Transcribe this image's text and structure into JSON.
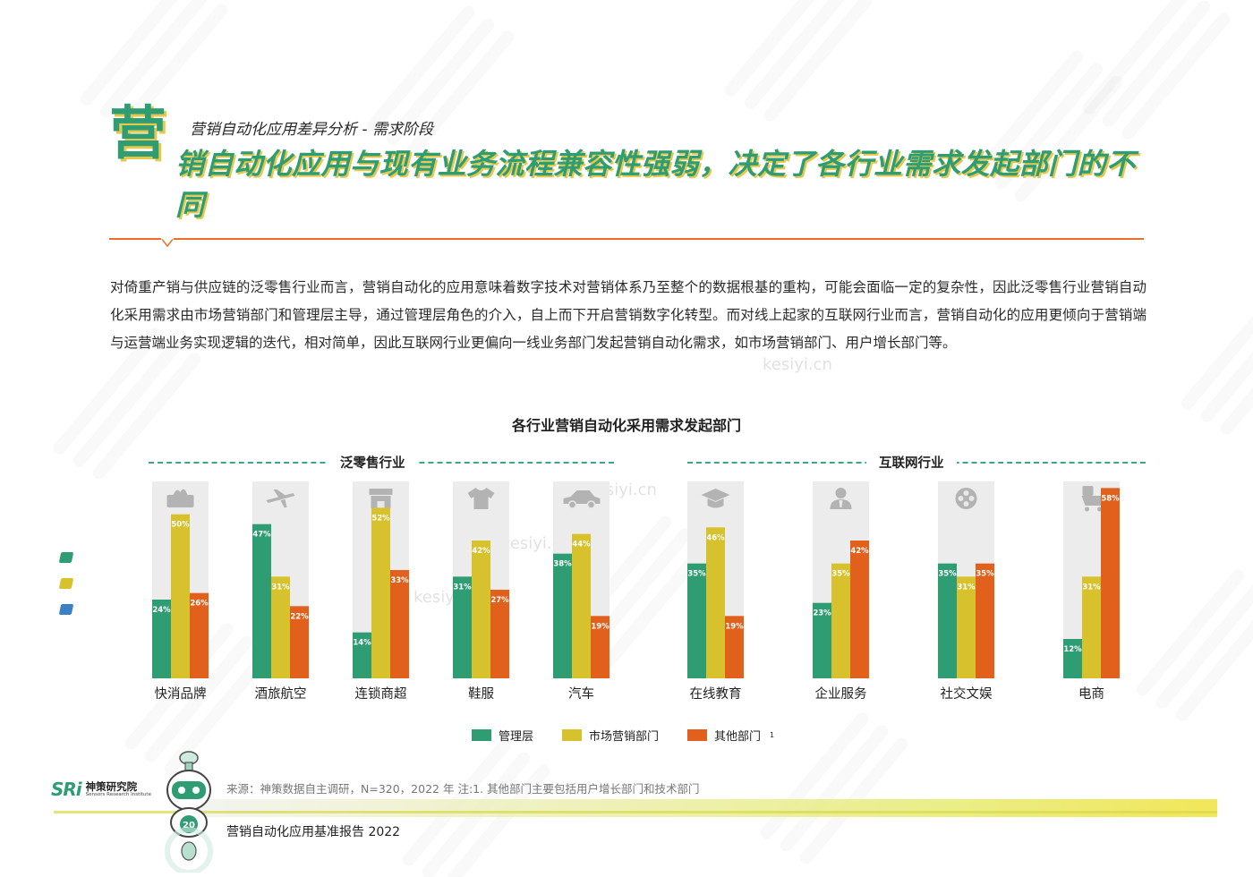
{
  "kicker": "营销自动化应用差异分析 - 需求阶段",
  "headline_first_char": "营",
  "headline_rest": "销自动化应用与现有业务流程兼容性强弱，决定了各行业需求发起部门的不同",
  "body_text": "对倚重产销与供应链的泛零售行业而言，营销自动化的应用意味着数字技术对营销体系乃至整个的数据根基的重构，可能会面临一定的复杂性，因此泛零售行业营销自动化采用需求由市场营销部门和管理层主导，通过管理层角色的介入，自上而下开启营销数字化转型。而对线上起家的互联网行业而言，营销自动化的应用更倾向于营销端与运营端业务实现逻辑的迭代，相对简单，因此互联网行业更偏向一线业务部门发起营销自动化需求，如市场营销部门、用户增长部门等。",
  "watermarks": [
    "kesiyi.cn",
    "kesiyi.cn",
    "kesiyi.cn",
    "kesiyi.cn"
  ],
  "chart_data": {
    "type": "bar",
    "title": "各行业营销自动化采用需求发起部门",
    "groups": [
      "泛零售行业",
      "互联网行业"
    ],
    "categories": [
      "快消品牌",
      "酒旅航空",
      "连锁商超",
      "鞋服",
      "汽车",
      "在线教育",
      "企业服务",
      "社交文娱",
      "电商"
    ],
    "category_group": [
      "泛零售行业",
      "泛零售行业",
      "泛零售行业",
      "泛零售行业",
      "泛零售行业",
      "互联网行业",
      "互联网行业",
      "互联网行业",
      "互联网行业"
    ],
    "icons": [
      "tissue-box-icon",
      "airplane-icon",
      "storefront-icon",
      "tshirt-icon",
      "car-icon",
      "graduation-cap-icon",
      "businessman-icon",
      "film-reel-icon",
      "ecommerce-cart-icon"
    ],
    "series": [
      {
        "name": "管理层",
        "color": "#2f9d74",
        "values": [
          24,
          47,
          14,
          31,
          38,
          35,
          23,
          35,
          12
        ]
      },
      {
        "name": "市场营销部门",
        "color": "#d7c22e",
        "values": [
          50,
          31,
          52,
          42,
          44,
          46,
          35,
          31,
          31
        ]
      },
      {
        "name": "其他部门",
        "color": "#e0601c",
        "values": [
          26,
          22,
          33,
          27,
          19,
          19,
          42,
          35,
          58
        ]
      }
    ],
    "value_suffix": "%",
    "ylim": [
      0,
      60
    ],
    "legend_position": "bottom",
    "legend_footnote_mark": "1"
  },
  "source": "来源：神策数据自主调研，N=320，2022 年   注:1. 其他部门主要包括用户增长部门和技术部门",
  "logo": {
    "mark": "SRi",
    "name": "神策研究院",
    "sub": "Sensors Research Institute",
    "robot_badge": "20"
  },
  "report_name": "营销自动化应用基准报告 2022",
  "side_mark_colors": [
    "#2f9d74",
    "#d7c22e",
    "#3b7fc4"
  ]
}
